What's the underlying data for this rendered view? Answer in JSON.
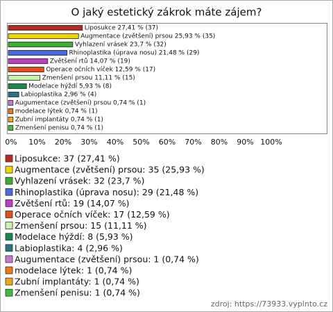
{
  "chart_data": {
    "type": "bar",
    "orientation": "horizontal",
    "title": "O jaký estetický zákrok máte zájem?",
    "categories": [
      "Liposukce",
      "Augmentace (zvětšení) prsou",
      "Vyhlazení vrásek",
      "Rhinoplastika (úprava nosu)",
      "Zvětšení rtů",
      "Operace očních víček",
      "Zmenšení prsou",
      "Modelace hýždí",
      "Labioplastika",
      "Augumentace (zvětšení) prsou",
      "modelace lýtek",
      "Zubní implantáty",
      "Zmenšení penisu"
    ],
    "values": [
      27.41,
      25.93,
      23.7,
      21.48,
      14.07,
      12.59,
      11.11,
      5.93,
      2.96,
      0.74,
      0.74,
      0.74,
      0.74
    ],
    "value_labels": [
      "Liposukce 27,41 % (37)",
      "Augmentace (zvětšení) prsou 25,93 % (35)",
      "Vyhlazení vrásek 23,7 % (32)",
      "Rhinoplastika (úprava nosu) 21,48 % (29)",
      "Zvětšení rtů 14,07 % (19)",
      "Operace očních víček 12,59 % (17)",
      "Zmenšení prsou 11,11 % (15)",
      "Modelace hýždí 5,93 % (8)",
      "Labioplastika 2,96 % (4)",
      "Augumentace (zvětšení) prsou 0,74 % (1)",
      "modelace lýtek 0,74 % (1)",
      "Zubní implantáty 0,74 % (1)",
      "Zmenšení penisu 0,74 % (1)"
    ],
    "legend_labels": [
      "Liposukce: 37 (27,41 %)",
      "Augmentace (zvětšení) prsou: 35 (25,93 %)",
      "Vyhlazení vrásek: 32 (23,7 %)",
      "Rhinoplastika (úprava nosu): 29 (21,48 %)",
      "Zvětšení rtů: 19 (14,07 %)",
      "Operace očních víček: 17 (12,59 %)",
      "Zmenšení prsou: 15 (11,11 %)",
      "Modelace hýždí: 8 (5,93 %)",
      "Labioplastika: 4 (2,96 %)",
      "Augumentace (zvětšení) prsou: 1 (0,74 %)",
      "modelace lýtek: 1 (0,74 %)",
      "Zubní implantáty: 1 (0,74 %)",
      "Zmenšení penisu: 1 (0,74 %)"
    ],
    "colors": [
      "#b8281c",
      "#f2d400",
      "#38b02c",
      "#4a6ad8",
      "#c03cc8",
      "#e4501c",
      "#c8f4a8",
      "#16884a",
      "#267486",
      "#c878d0",
      "#ee7818",
      "#f0a818",
      "#3cc03c"
    ],
    "xlim": [
      0,
      100
    ],
    "xticks": [
      {
        "value": 0,
        "label": "0%"
      },
      {
        "value": 10,
        "label": "10%"
      },
      {
        "value": 20,
        "label": "20%"
      },
      {
        "value": 30,
        "label": "30%"
      },
      {
        "value": 40,
        "label": "40%"
      },
      {
        "value": 50,
        "label": "50%"
      },
      {
        "value": 60,
        "label": "60%"
      },
      {
        "value": 70,
        "label": "70%"
      },
      {
        "value": 80,
        "label": "80%"
      },
      {
        "value": 90,
        "label": "90%"
      },
      {
        "value": 100,
        "label": "100%"
      }
    ],
    "source": "zdroj: https://73933.vyplnto.cz"
  }
}
